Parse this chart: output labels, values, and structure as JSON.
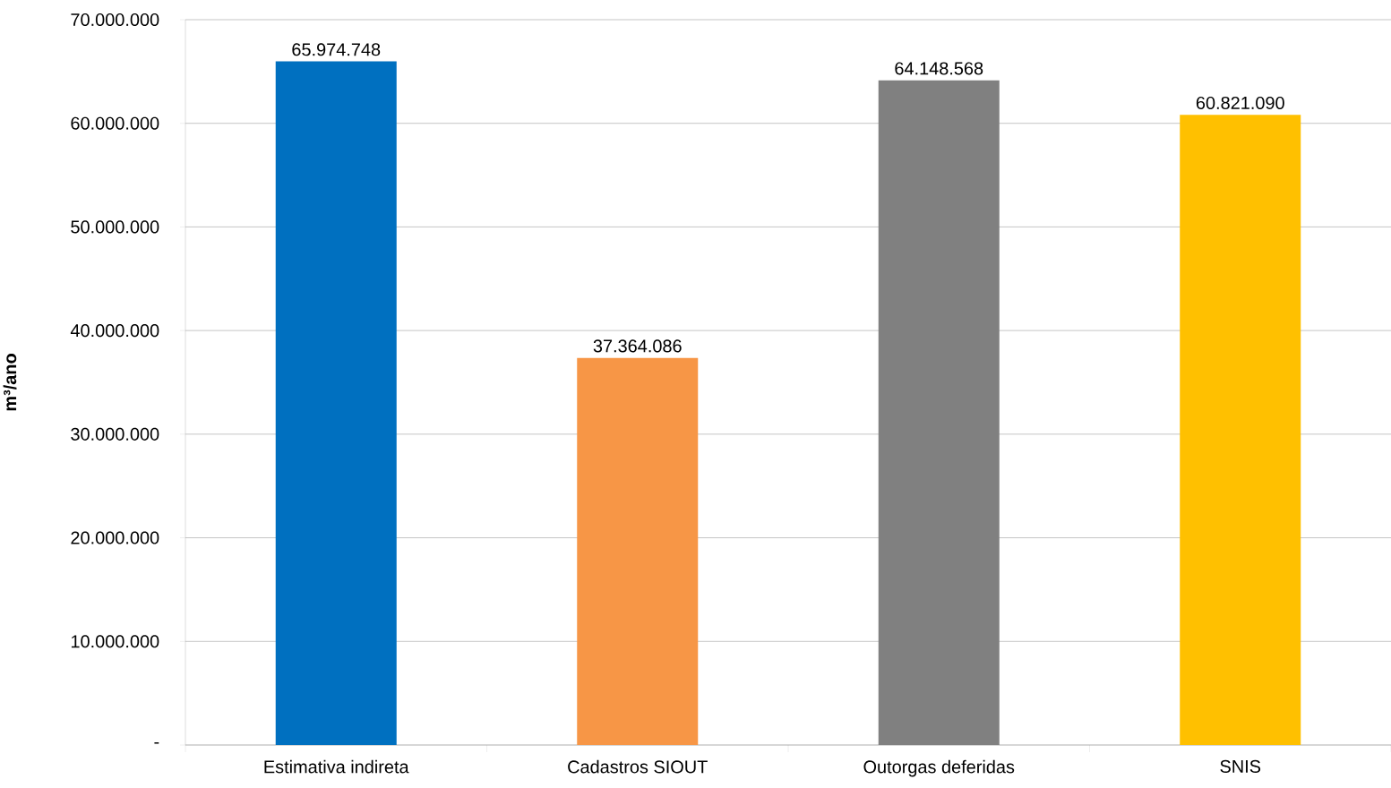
{
  "chart_data": {
    "type": "bar",
    "ylabel": "m³/ano",
    "categories": [
      "Estimativa indireta",
      "Cadastros SIOUT",
      "Outorgas deferidas",
      "SNIS"
    ],
    "values": [
      65974748,
      37364086,
      64148568,
      60821090
    ],
    "colors": [
      "#0070c0",
      "#f79646",
      "#808080",
      "#ffc000"
    ],
    "value_labels": [
      "65.974.748",
      "37.364.086",
      "64.148.568",
      "60.821.090"
    ],
    "ylim": [
      0,
      70000000
    ],
    "yticks": [
      {
        "value": 0,
        "label": "-"
      },
      {
        "value": 10000000,
        "label": "10.000.000"
      },
      {
        "value": 20000000,
        "label": "20.000.000"
      },
      {
        "value": 30000000,
        "label": "30.000.000"
      },
      {
        "value": 40000000,
        "label": "40.000.000"
      },
      {
        "value": 50000000,
        "label": "50.000.000"
      },
      {
        "value": 60000000,
        "label": "60.000.000"
      },
      {
        "value": 70000000,
        "label": "70.000.000"
      }
    ],
    "grid": "y"
  }
}
